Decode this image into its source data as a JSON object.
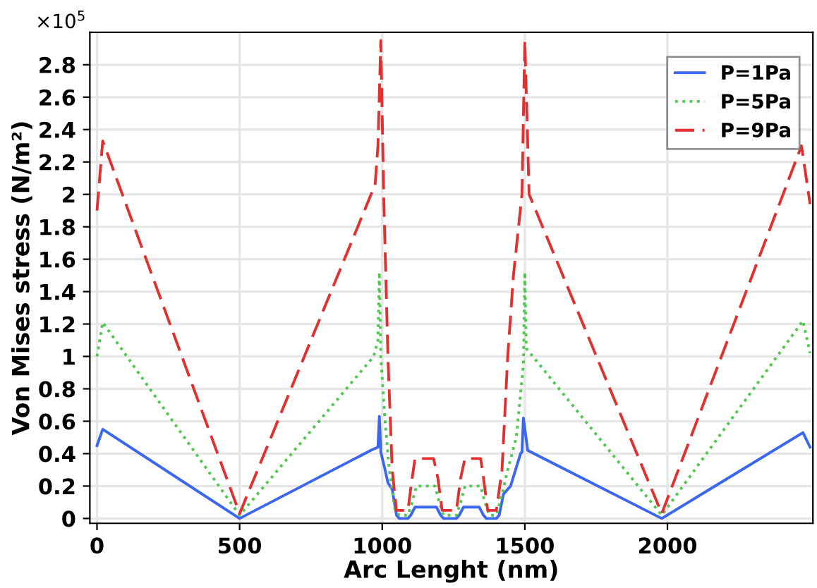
{
  "chart_data": {
    "type": "line",
    "xlabel": "Arc Lenght (nm)",
    "ylabel": "Von Mises stress (N/m²)",
    "annotations": [
      "×10$^{5}$"
    ],
    "xlim": [
      -25,
      2510
    ],
    "ylim": [
      -0.03,
      3.0
    ],
    "xticks": [
      0,
      500,
      1000,
      1500,
      2000
    ],
    "yticks": [
      0,
      0.2,
      0.4,
      0.6,
      0.8,
      1,
      1.2,
      1.4,
      1.6,
      1.8,
      2,
      2.2,
      2.4,
      2.6,
      2.8
    ],
    "grid": true,
    "legend": "top right",
    "marker": "none",
    "series": [
      {
        "name": "P=1Pa",
        "color": "#3a66f0",
        "line_style": "solid",
        "x": [
          0,
          20,
          500,
          960,
          985,
          990,
          995,
          1010,
          1020,
          1035,
          1050,
          1060,
          1090,
          1100,
          1115,
          1190,
          1205,
          1215,
          1260,
          1270,
          1285,
          1340,
          1355,
          1365,
          1400,
          1410,
          1425,
          1450,
          1485,
          1490,
          1495,
          1510,
          1980,
          2475,
          2500
        ],
        "values": [
          0.45,
          0.55,
          0.0,
          0.42,
          0.44,
          0.63,
          0.41,
          0.3,
          0.22,
          0.18,
          0.02,
          0.0,
          0.0,
          0.02,
          0.07,
          0.07,
          0.02,
          0.0,
          0.0,
          0.02,
          0.07,
          0.07,
          0.02,
          0.0,
          0.0,
          0.02,
          0.15,
          0.2,
          0.4,
          0.41,
          0.62,
          0.42,
          0.0,
          0.53,
          0.44
        ]
      },
      {
        "name": "P=5Pa",
        "color": "#50c850",
        "line_style": "dotted",
        "x": [
          0,
          20,
          500,
          970,
          985,
          990,
          995,
          1010,
          1025,
          1045,
          1060,
          1090,
          1105,
          1120,
          1185,
          1200,
          1215,
          1260,
          1275,
          1290,
          1345,
          1360,
          1375,
          1400,
          1420,
          1440,
          1470,
          1495,
          1500,
          1505,
          1980,
          2475,
          2500
        ],
        "values": [
          1.0,
          1.21,
          0.02,
          1.0,
          1.1,
          1.52,
          1.0,
          0.6,
          0.3,
          0.05,
          0.02,
          0.02,
          0.1,
          0.2,
          0.2,
          0.1,
          0.02,
          0.02,
          0.1,
          0.2,
          0.2,
          0.1,
          0.02,
          0.02,
          0.15,
          0.3,
          0.5,
          0.95,
          1.52,
          1.05,
          0.02,
          1.22,
          1.02
        ]
      },
      {
        "name": "P=9Pa",
        "color": "#e03030",
        "line_style": "dashed",
        "x": [
          0,
          20,
          500,
          975,
          985,
          995,
          1005,
          1020,
          1035,
          1050,
          1090,
          1105,
          1115,
          1180,
          1195,
          1210,
          1260,
          1275,
          1290,
          1345,
          1355,
          1370,
          1400,
          1420,
          1440,
          1460,
          1490,
          1500,
          1515,
          1980,
          2470,
          2500
        ],
        "values": [
          1.9,
          2.33,
          0.03,
          2.06,
          2.3,
          2.95,
          2.0,
          1.0,
          0.3,
          0.05,
          0.05,
          0.25,
          0.37,
          0.37,
          0.25,
          0.05,
          0.05,
          0.25,
          0.37,
          0.37,
          0.25,
          0.05,
          0.05,
          0.3,
          1.0,
          1.5,
          2.0,
          2.95,
          2.0,
          0.03,
          2.3,
          1.94
        ]
      }
    ]
  }
}
